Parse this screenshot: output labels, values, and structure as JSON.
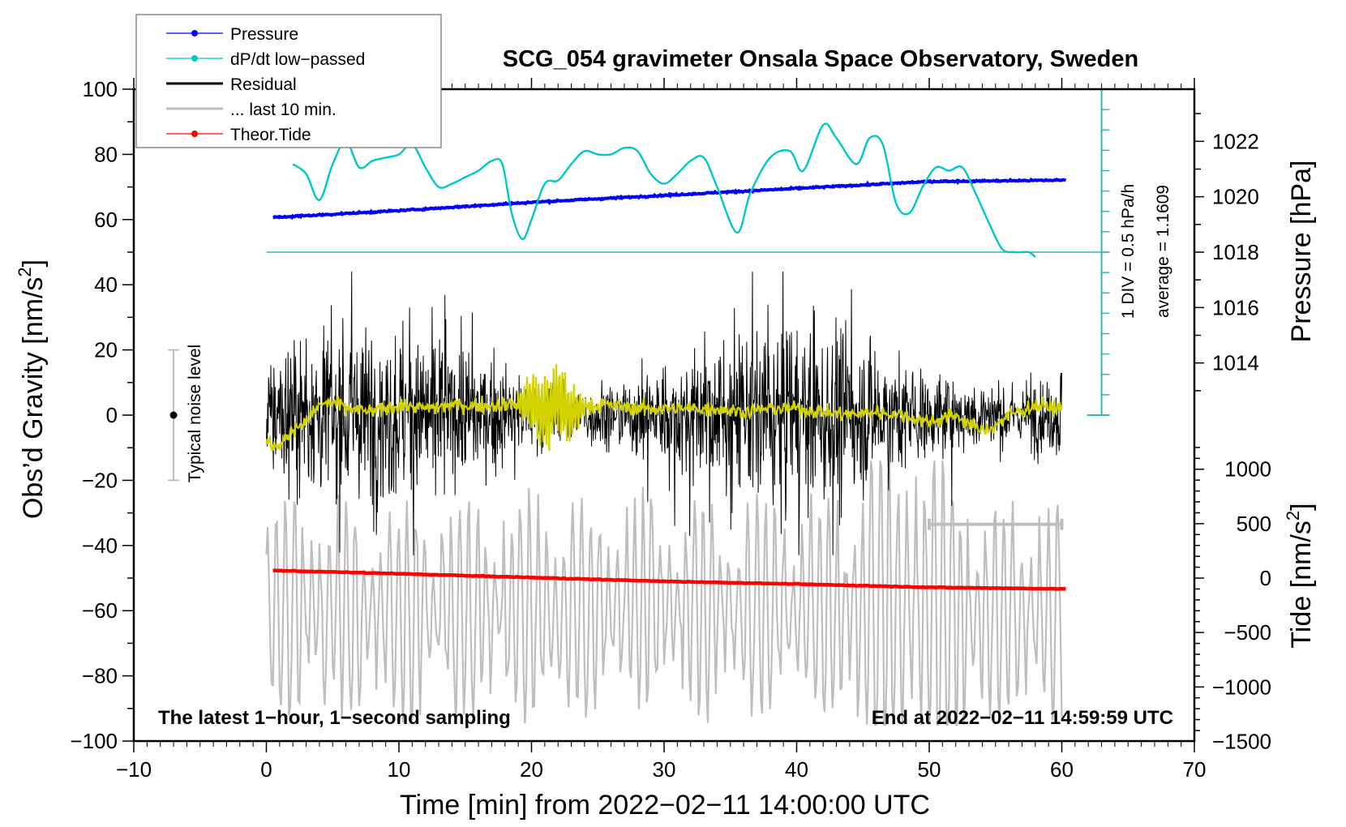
{
  "chart_data": {
    "type": "line",
    "title": "SCG_054 gravimeter Onsala Space Observatory, Sweden",
    "xlabel": "Time [min] from 2022−02−11 14:00:00 UTC",
    "ylabel_left": "Obs’d Gravity [nm/s²]",
    "ylabel_left_main": "Obs’d Gravity [nm/s",
    "ylabel_left_sup": "2",
    "ylabel_left_close": "]",
    "ylabel_right_pressure": "Pressure [hPa]",
    "ylabel_right_tide_main": "Tide [nm/s",
    "ylabel_right_tide_sup": "2",
    "ylabel_right_tide_close": "]",
    "xlim": [
      -10,
      70
    ],
    "ylim_left": [
      -100,
      100
    ],
    "pressure_axis_range": [
      1012,
      1024
    ],
    "tide_axis_range": [
      -1500,
      1500
    ],
    "x_ticks": [
      "−10",
      "0",
      "10",
      "20",
      "30",
      "40",
      "50",
      "60",
      "70"
    ],
    "x_tick_values": [
      -10,
      0,
      10,
      20,
      30,
      40,
      50,
      60,
      70
    ],
    "y_left_ticks": [
      "100",
      "80",
      "60",
      "40",
      "20",
      "0",
      "−20",
      "−40",
      "−60",
      "−80",
      "−100"
    ],
    "y_left_tick_values": [
      100,
      80,
      60,
      40,
      20,
      0,
      -20,
      -40,
      -60,
      -80,
      -100
    ],
    "pressure_ticks": [
      "1022",
      "1020",
      "1018",
      "1016",
      "1014"
    ],
    "pressure_tick_values": [
      1022,
      1020,
      1018,
      1016,
      1014
    ],
    "tide_ticks": [
      "1000",
      "500",
      "0",
      "−500",
      "−1000",
      "−1500"
    ],
    "tide_tick_values": [
      1000,
      500,
      0,
      -500,
      -1000,
      -1500
    ],
    "legend": {
      "position": "top-left",
      "entries": [
        {
          "label": "Pressure",
          "color": "#0000ff",
          "marker": true
        },
        {
          "label": "dP/dt low−passed",
          "color": "#00c8c8",
          "marker": true
        },
        {
          "label": "Residual",
          "color": "#000000",
          "marker": false
        },
        {
          "label": "... last 10 min.",
          "color": "#bebebe",
          "marker": false
        },
        {
          "label": "Theor.Tide",
          "color": "#ff0000",
          "marker": true
        }
      ]
    },
    "series": [
      {
        "name": "Pressure",
        "color": "#0000ff",
        "axis": "pressure",
        "x": [
          0.5,
          10,
          20,
          30,
          40,
          50,
          60.3
        ],
        "values": [
          1019.25,
          1019.5,
          1019.8,
          1020.05,
          1020.3,
          1020.55,
          1020.6
        ]
      },
      {
        "name": "dP/dt low-passed",
        "color": "#00c8c8",
        "axis": "gravity_units",
        "x": [
          2,
          3,
          4,
          5,
          6,
          7,
          8,
          9,
          10,
          11,
          12,
          13,
          14,
          15,
          16,
          17,
          17.8,
          18.5,
          19.3,
          20,
          21,
          22,
          23,
          24,
          25,
          26,
          27,
          28,
          29,
          30,
          31,
          32,
          33,
          34,
          35.5,
          36.5,
          38,
          39.5,
          40.5,
          42,
          43,
          44.5,
          45.5,
          46.5,
          47.5,
          48.5,
          49.5,
          50.5,
          51.5,
          52.5,
          53.5,
          54.5,
          55.5,
          56.5,
          57.5,
          58
        ],
        "values": [
          77,
          74,
          66,
          77,
          84,
          76,
          78,
          79,
          80,
          83,
          76,
          70,
          71,
          73,
          75,
          78,
          77,
          62,
          54,
          60,
          71,
          72,
          77,
          81,
          80,
          80,
          82,
          81,
          74,
          71,
          74,
          78,
          79,
          70,
          56,
          68,
          79,
          81,
          75,
          89,
          85,
          77,
          85,
          83,
          65,
          62,
          70,
          76,
          75,
          76,
          68,
          59,
          51,
          50,
          50,
          48.5
        ]
      },
      {
        "name": "Residual",
        "color": "#000000",
        "axis": "gravity",
        "x_range": [
          0,
          60
        ],
        "description": "1-second sampled noise, approx ±40 nm/s² envelope",
        "values_summary": {
          "mean": 0,
          "max": 44,
          "min": -43
        }
      },
      {
        "name": "Residual smoothed",
        "color": "#d2d200",
        "axis": "gravity",
        "x": [
          0,
          1,
          2,
          3,
          4,
          5,
          6,
          8,
          10,
          12,
          14,
          16,
          18,
          20,
          21,
          22,
          23,
          24,
          26,
          28,
          30,
          32,
          34,
          36,
          38,
          40,
          42,
          44,
          46,
          48,
          50,
          52,
          54,
          55,
          56,
          58,
          60
        ],
        "values": [
          -8,
          -10,
          -4,
          -2,
          3,
          4,
          2,
          1,
          3,
          2,
          3,
          3,
          3,
          4,
          0,
          5,
          0,
          3,
          3,
          2,
          2,
          2,
          2,
          1,
          2,
          2,
          1,
          0,
          1,
          0,
          -2,
          0,
          -5,
          -3,
          0,
          3,
          2
        ]
      },
      {
        "name": "... last 10 min.",
        "color": "#bebebe",
        "axis": "gravity",
        "x_range": [
          0,
          60
        ],
        "description": "residual of last 10 min stretched over full window, offset around -60 nm/s²",
        "values_summary": {
          "center": -60,
          "amplitude": 35
        }
      },
      {
        "name": "Theor.Tide",
        "color": "#ff0000",
        "axis": "tide",
        "x": [
          0.5,
          10,
          20,
          30,
          40,
          50,
          60.3
        ],
        "values": [
          70,
          40,
          5,
          -30,
          -55,
          -85,
          -100
        ]
      }
    ],
    "dpdt_annotation": {
      "scale_text": "1 DIV = 0.5 hPa/h",
      "average_text": "average = 1.1609",
      "zero_line_gravity": 50
    },
    "noise_bar": {
      "label": "Typical noise level",
      "x": -7,
      "y": 0,
      "low": -20,
      "high": 20
    },
    "last10_bar": {
      "x_start": 50,
      "x_end": 60
    },
    "bottom_left_text": "The latest 1−hour, 1−second sampling",
    "bottom_right_text": "End at 2022−02−11 14:59:59 UTC",
    "grid": false
  }
}
